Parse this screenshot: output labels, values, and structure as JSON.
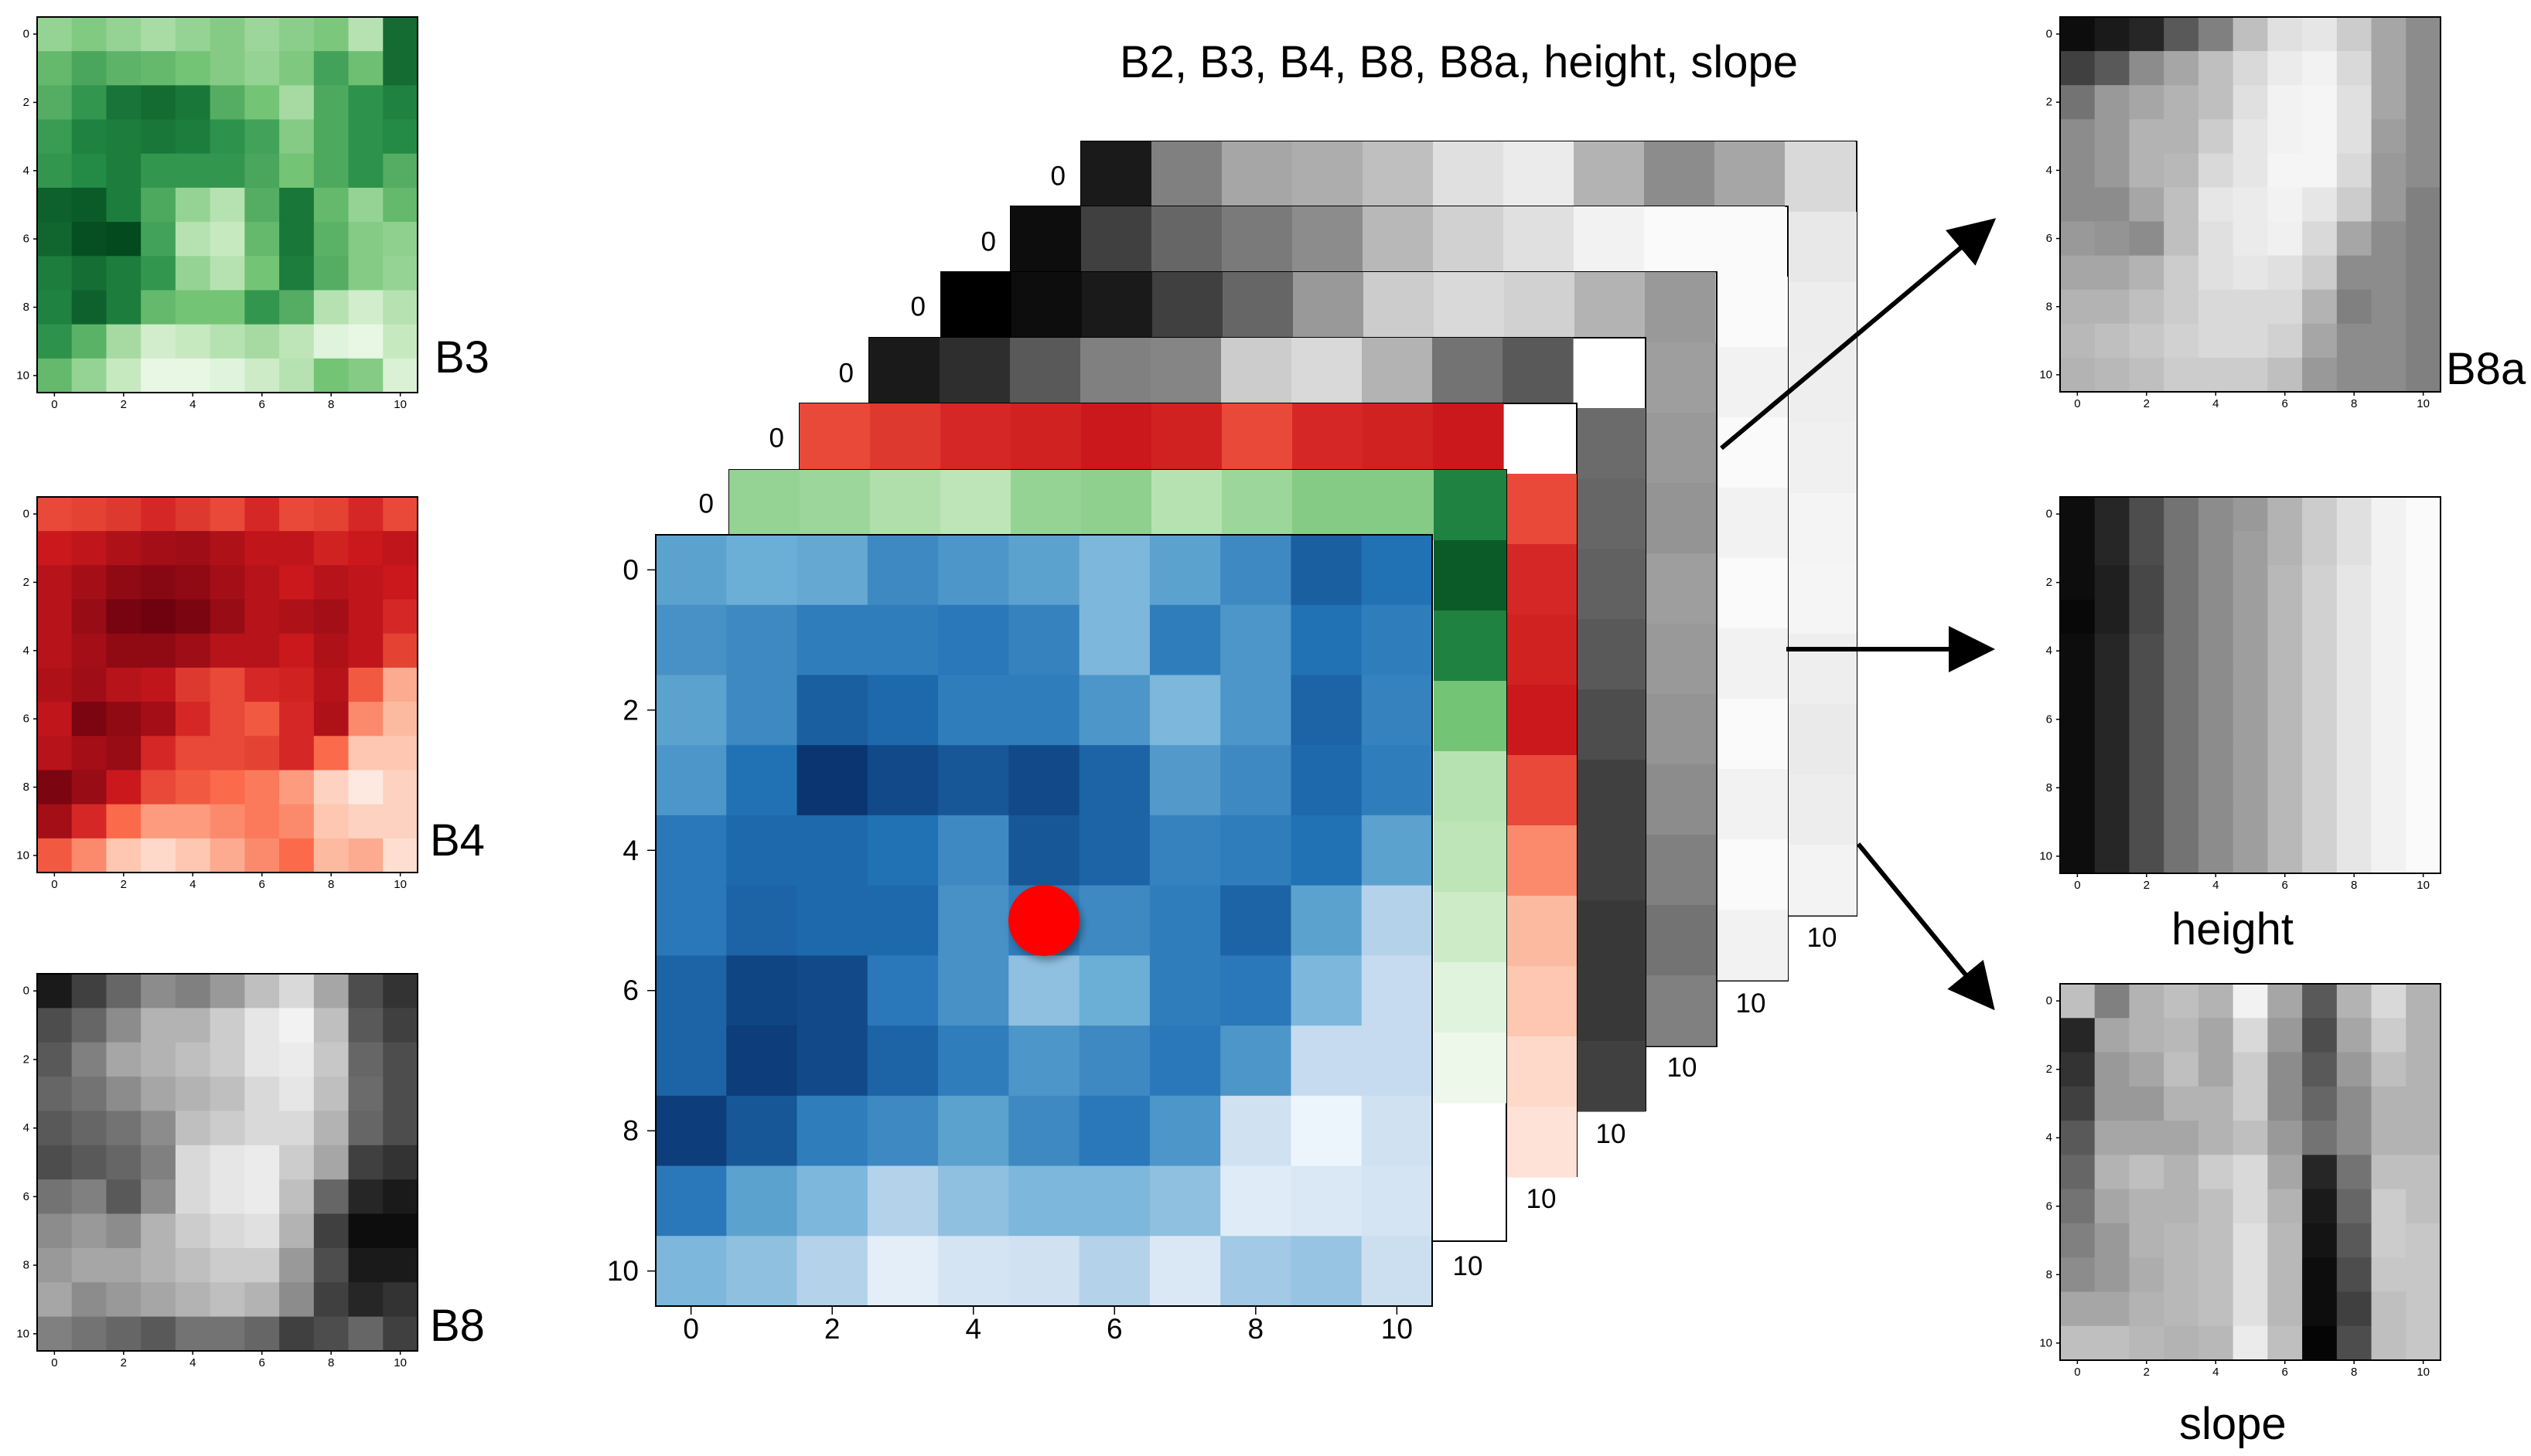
{
  "stack_title": "B2, B3, B4, B8, B8a, height, slope",
  "axis_ticks": [
    "0",
    "2",
    "4",
    "6",
    "8",
    "10"
  ],
  "layer_tick_zero": "0",
  "layer_tick_ten": "10",
  "panels": {
    "b3": {
      "label": "B3",
      "grid": [
        [
          0.4,
          0.46,
          0.4,
          0.34,
          0.4,
          0.45,
          0.38,
          0.43,
          0.48,
          0.3,
          0.86
        ],
        [
          0.55,
          0.63,
          0.57,
          0.55,
          0.5,
          0.45,
          0.4,
          0.47,
          0.65,
          0.52,
          0.86
        ],
        [
          0.6,
          0.7,
          0.83,
          0.86,
          0.82,
          0.6,
          0.5,
          0.35,
          0.62,
          0.72,
          0.78
        ],
        [
          0.68,
          0.78,
          0.8,
          0.82,
          0.8,
          0.72,
          0.65,
          0.45,
          0.62,
          0.72,
          0.75
        ],
        [
          0.7,
          0.75,
          0.8,
          0.7,
          0.7,
          0.7,
          0.63,
          0.5,
          0.62,
          0.72,
          0.6
        ],
        [
          0.9,
          0.92,
          0.8,
          0.62,
          0.4,
          0.3,
          0.6,
          0.82,
          0.55,
          0.4,
          0.55
        ],
        [
          0.88,
          0.96,
          0.98,
          0.65,
          0.3,
          0.25,
          0.55,
          0.82,
          0.58,
          0.45,
          0.42
        ],
        [
          0.8,
          0.85,
          0.8,
          0.7,
          0.4,
          0.3,
          0.5,
          0.8,
          0.6,
          0.45,
          0.4
        ],
        [
          0.78,
          0.9,
          0.8,
          0.55,
          0.5,
          0.5,
          0.7,
          0.6,
          0.3,
          0.2,
          0.3
        ],
        [
          0.72,
          0.58,
          0.35,
          0.2,
          0.25,
          0.3,
          0.35,
          0.28,
          0.12,
          0.08,
          0.25
        ],
        [
          0.55,
          0.4,
          0.25,
          0.08,
          0.08,
          0.12,
          0.22,
          0.3,
          0.5,
          0.45,
          0.15
        ]
      ]
    },
    "b4": {
      "label": "B4",
      "grid": [
        [
          0.6,
          0.62,
          0.65,
          0.7,
          0.65,
          0.6,
          0.7,
          0.6,
          0.62,
          0.7,
          0.6
        ],
        [
          0.75,
          0.78,
          0.82,
          0.85,
          0.86,
          0.82,
          0.78,
          0.78,
          0.72,
          0.75,
          0.78
        ],
        [
          0.8,
          0.85,
          0.9,
          0.92,
          0.9,
          0.85,
          0.8,
          0.75,
          0.8,
          0.78,
          0.75
        ],
        [
          0.8,
          0.88,
          0.96,
          0.98,
          0.95,
          0.88,
          0.8,
          0.82,
          0.85,
          0.78,
          0.7
        ],
        [
          0.8,
          0.85,
          0.9,
          0.9,
          0.86,
          0.8,
          0.8,
          0.75,
          0.82,
          0.78,
          0.62
        ],
        [
          0.82,
          0.86,
          0.8,
          0.78,
          0.65,
          0.6,
          0.7,
          0.72,
          0.8,
          0.55,
          0.3
        ],
        [
          0.78,
          0.95,
          0.9,
          0.85,
          0.7,
          0.6,
          0.55,
          0.7,
          0.82,
          0.4,
          0.25
        ],
        [
          0.8,
          0.85,
          0.88,
          0.7,
          0.6,
          0.6,
          0.62,
          0.7,
          0.5,
          0.2,
          0.2
        ],
        [
          0.95,
          0.88,
          0.75,
          0.6,
          0.55,
          0.5,
          0.45,
          0.35,
          0.15,
          0.05,
          0.15
        ],
        [
          0.85,
          0.7,
          0.5,
          0.35,
          0.35,
          0.4,
          0.45,
          0.4,
          0.2,
          0.15,
          0.15
        ],
        [
          0.55,
          0.4,
          0.2,
          0.12,
          0.2,
          0.3,
          0.4,
          0.5,
          0.25,
          0.3,
          0.1
        ]
      ]
    },
    "b8": {
      "label": "B8",
      "grid": [
        [
          0.1,
          0.25,
          0.4,
          0.55,
          0.5,
          0.6,
          0.75,
          0.85,
          0.65,
          0.3,
          0.2
        ],
        [
          0.3,
          0.4,
          0.55,
          0.7,
          0.7,
          0.8,
          0.9,
          0.95,
          0.75,
          0.35,
          0.25
        ],
        [
          0.35,
          0.5,
          0.65,
          0.7,
          0.75,
          0.8,
          0.9,
          0.92,
          0.78,
          0.4,
          0.3
        ],
        [
          0.4,
          0.45,
          0.55,
          0.65,
          0.7,
          0.75,
          0.85,
          0.9,
          0.75,
          0.42,
          0.3
        ],
        [
          0.35,
          0.4,
          0.45,
          0.55,
          0.75,
          0.8,
          0.85,
          0.85,
          0.7,
          0.4,
          0.3
        ],
        [
          0.3,
          0.35,
          0.4,
          0.5,
          0.85,
          0.9,
          0.92,
          0.8,
          0.65,
          0.25,
          0.2
        ],
        [
          0.45,
          0.5,
          0.35,
          0.55,
          0.85,
          0.9,
          0.92,
          0.75,
          0.4,
          0.15,
          0.1
        ],
        [
          0.55,
          0.6,
          0.55,
          0.7,
          0.8,
          0.85,
          0.88,
          0.7,
          0.25,
          0.05,
          0.05
        ],
        [
          0.6,
          0.65,
          0.65,
          0.7,
          0.75,
          0.8,
          0.8,
          0.6,
          0.3,
          0.1,
          0.1
        ],
        [
          0.65,
          0.55,
          0.6,
          0.65,
          0.7,
          0.75,
          0.7,
          0.55,
          0.25,
          0.15,
          0.2
        ],
        [
          0.5,
          0.45,
          0.4,
          0.35,
          0.45,
          0.45,
          0.4,
          0.25,
          0.3,
          0.4,
          0.25
        ]
      ]
    },
    "b8a": {
      "label": "B8a",
      "grid": [
        [
          0.05,
          0.1,
          0.15,
          0.35,
          0.5,
          0.75,
          0.88,
          0.9,
          0.8,
          0.65,
          0.55
        ],
        [
          0.25,
          0.35,
          0.55,
          0.65,
          0.75,
          0.85,
          0.92,
          0.95,
          0.85,
          0.65,
          0.55
        ],
        [
          0.45,
          0.6,
          0.65,
          0.7,
          0.75,
          0.88,
          0.95,
          0.96,
          0.88,
          0.65,
          0.55
        ],
        [
          0.55,
          0.6,
          0.7,
          0.7,
          0.8,
          0.9,
          0.95,
          0.96,
          0.88,
          0.62,
          0.55
        ],
        [
          0.55,
          0.6,
          0.7,
          0.72,
          0.85,
          0.9,
          0.96,
          0.96,
          0.85,
          0.6,
          0.55
        ],
        [
          0.55,
          0.55,
          0.65,
          0.75,
          0.9,
          0.92,
          0.95,
          0.9,
          0.8,
          0.6,
          0.5
        ],
        [
          0.6,
          0.58,
          0.55,
          0.75,
          0.88,
          0.92,
          0.94,
          0.85,
          0.65,
          0.55,
          0.5
        ],
        [
          0.65,
          0.65,
          0.7,
          0.8,
          0.88,
          0.9,
          0.88,
          0.8,
          0.55,
          0.55,
          0.5
        ],
        [
          0.7,
          0.7,
          0.75,
          0.8,
          0.85,
          0.85,
          0.85,
          0.7,
          0.5,
          0.55,
          0.5
        ],
        [
          0.72,
          0.75,
          0.78,
          0.82,
          0.85,
          0.85,
          0.82,
          0.65,
          0.55,
          0.55,
          0.5
        ],
        [
          0.7,
          0.72,
          0.75,
          0.8,
          0.8,
          0.8,
          0.75,
          0.6,
          0.55,
          0.55,
          0.5
        ]
      ]
    },
    "height": {
      "label": "height",
      "grid": [
        [
          0.05,
          0.15,
          0.3,
          0.45,
          0.55,
          0.6,
          0.7,
          0.8,
          0.88,
          0.95,
          0.98
        ],
        [
          0.05,
          0.15,
          0.3,
          0.45,
          0.55,
          0.62,
          0.7,
          0.8,
          0.88,
          0.95,
          0.98
        ],
        [
          0.05,
          0.12,
          0.28,
          0.45,
          0.55,
          0.62,
          0.72,
          0.82,
          0.9,
          0.95,
          0.98
        ],
        [
          0.03,
          0.12,
          0.28,
          0.45,
          0.55,
          0.62,
          0.72,
          0.82,
          0.9,
          0.95,
          0.98
        ],
        [
          0.05,
          0.15,
          0.3,
          0.45,
          0.55,
          0.62,
          0.72,
          0.82,
          0.9,
          0.95,
          0.98
        ],
        [
          0.05,
          0.15,
          0.3,
          0.45,
          0.55,
          0.62,
          0.72,
          0.82,
          0.9,
          0.95,
          0.98
        ],
        [
          0.05,
          0.15,
          0.3,
          0.45,
          0.55,
          0.62,
          0.72,
          0.82,
          0.9,
          0.95,
          0.98
        ],
        [
          0.05,
          0.15,
          0.3,
          0.45,
          0.55,
          0.62,
          0.72,
          0.82,
          0.9,
          0.95,
          0.98
        ],
        [
          0.05,
          0.15,
          0.3,
          0.45,
          0.55,
          0.62,
          0.72,
          0.82,
          0.9,
          0.95,
          0.98
        ],
        [
          0.05,
          0.15,
          0.3,
          0.45,
          0.55,
          0.62,
          0.72,
          0.82,
          0.9,
          0.95,
          0.98
        ],
        [
          0.05,
          0.15,
          0.3,
          0.45,
          0.55,
          0.62,
          0.72,
          0.82,
          0.9,
          0.95,
          0.98
        ]
      ]
    },
    "slope": {
      "label": "slope",
      "grid": [
        [
          0.75,
          0.5,
          0.7,
          0.75,
          0.7,
          0.95,
          0.65,
          0.35,
          0.7,
          0.85,
          0.7
        ],
        [
          0.15,
          0.65,
          0.7,
          0.72,
          0.65,
          0.85,
          0.6,
          0.3,
          0.65,
          0.8,
          0.7
        ],
        [
          0.2,
          0.6,
          0.65,
          0.75,
          0.65,
          0.8,
          0.55,
          0.35,
          0.6,
          0.75,
          0.7
        ],
        [
          0.25,
          0.6,
          0.6,
          0.7,
          0.7,
          0.8,
          0.55,
          0.4,
          0.55,
          0.7,
          0.7
        ],
        [
          0.35,
          0.65,
          0.65,
          0.65,
          0.7,
          0.75,
          0.6,
          0.45,
          0.55,
          0.7,
          0.7
        ],
        [
          0.4,
          0.7,
          0.75,
          0.7,
          0.8,
          0.85,
          0.65,
          0.15,
          0.45,
          0.75,
          0.75
        ],
        [
          0.45,
          0.65,
          0.7,
          0.7,
          0.75,
          0.85,
          0.7,
          0.1,
          0.4,
          0.8,
          0.75
        ],
        [
          0.5,
          0.6,
          0.7,
          0.72,
          0.75,
          0.88,
          0.72,
          0.08,
          0.35,
          0.8,
          0.78
        ],
        [
          0.55,
          0.6,
          0.68,
          0.72,
          0.75,
          0.88,
          0.72,
          0.05,
          0.3,
          0.78,
          0.78
        ],
        [
          0.65,
          0.65,
          0.7,
          0.72,
          0.75,
          0.88,
          0.72,
          0.05,
          0.25,
          0.75,
          0.78
        ],
        [
          0.75,
          0.75,
          0.72,
          0.7,
          0.72,
          0.92,
          0.75,
          0.02,
          0.3,
          0.75,
          0.78
        ]
      ]
    }
  },
  "main_grid_b2": [
    [
      0.55,
      0.5,
      0.52,
      0.65,
      0.6,
      0.55,
      0.45,
      0.55,
      0.65,
      0.82,
      0.75
    ],
    [
      0.62,
      0.65,
      0.7,
      0.7,
      0.72,
      0.68,
      0.45,
      0.7,
      0.6,
      0.75,
      0.7
    ],
    [
      0.55,
      0.65,
      0.82,
      0.78,
      0.7,
      0.7,
      0.6,
      0.45,
      0.6,
      0.8,
      0.68
    ],
    [
      0.6,
      0.75,
      0.98,
      0.9,
      0.85,
      0.9,
      0.8,
      0.58,
      0.65,
      0.78,
      0.7
    ],
    [
      0.72,
      0.78,
      0.78,
      0.75,
      0.65,
      0.85,
      0.8,
      0.68,
      0.7,
      0.75,
      0.55
    ],
    [
      0.72,
      0.8,
      0.78,
      0.78,
      0.62,
      0.7,
      0.65,
      0.7,
      0.8,
      0.55,
      0.3
    ],
    [
      0.8,
      0.92,
      0.9,
      0.72,
      0.62,
      0.4,
      0.5,
      0.7,
      0.72,
      0.45,
      0.25
    ],
    [
      0.8,
      0.95,
      0.9,
      0.8,
      0.7,
      0.6,
      0.65,
      0.72,
      0.6,
      0.25,
      0.25
    ],
    [
      0.95,
      0.85,
      0.7,
      0.65,
      0.55,
      0.65,
      0.72,
      0.6,
      0.2,
      0.05,
      0.2
    ],
    [
      0.72,
      0.55,
      0.45,
      0.3,
      0.4,
      0.45,
      0.45,
      0.4,
      0.12,
      0.15,
      0.18
    ],
    [
      0.45,
      0.4,
      0.3,
      0.1,
      0.18,
      0.2,
      0.3,
      0.15,
      0.35,
      0.38,
      0.22
    ]
  ],
  "layer_columns": {
    "b8a": [
      0.1,
      0.5,
      0.65,
      0.68,
      0.75,
      0.88,
      0.92,
      0.7,
      0.55,
      0.65,
      0.85
    ],
    "height": [
      0.05,
      0.25,
      0.4,
      0.48,
      0.55,
      0.72,
      0.82,
      0.88,
      0.95,
      0.98,
      0.98
    ],
    "b8": [
      0.0,
      0.05,
      0.1,
      0.25,
      0.4,
      0.6,
      0.8,
      0.85,
      0.82,
      0.7,
      0.6
    ],
    "slope": [
      0.1,
      0.18,
      0.35,
      0.5,
      0.52,
      0.8,
      0.85,
      0.7,
      0.45,
      0.35
    ],
    "b4_row": [
      0.6,
      0.65,
      0.7,
      0.72,
      0.75,
      0.72,
      0.6,
      0.7,
      0.72,
      0.75
    ],
    "b4_col": [
      0.6,
      0.7,
      0.72,
      0.75,
      0.6,
      0.4,
      0.25,
      0.2,
      0.12,
      0.08
    ],
    "b3_row": [
      0.4,
      0.38,
      0.32,
      0.28,
      0.4,
      0.42,
      0.3,
      0.38,
      0.45
    ],
    "b3_col": [
      0.92,
      0.78,
      0.5,
      0.3,
      0.28,
      0.22,
      0.12,
      0.05
    ]
  },
  "pixel_marker": {
    "x": 5,
    "y": 5,
    "color": "#ff0000"
  }
}
